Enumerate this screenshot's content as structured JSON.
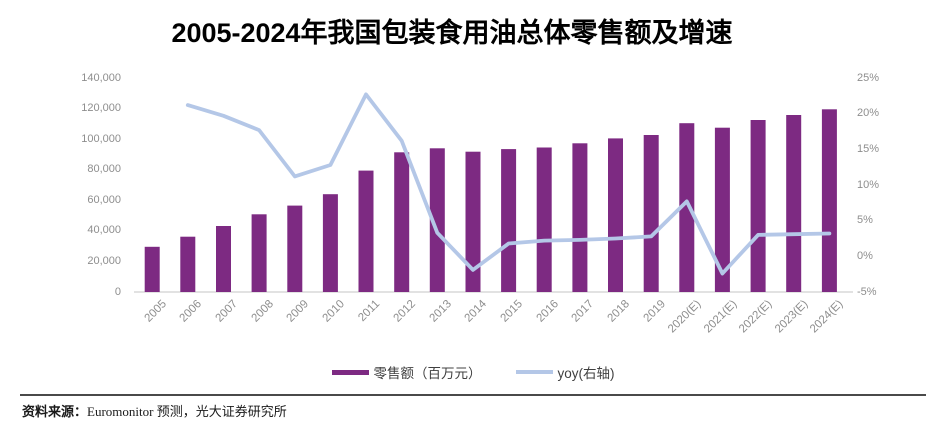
{
  "title": "2005-2024年我国包装食用油总体零售额及增速",
  "legend": {
    "bar_label": "零售额（百万元）",
    "line_label": "yoy(右轴)"
  },
  "footer": {
    "label": "资料来源：",
    "text": "Euromonitor 预测，光大证券研究所"
  },
  "colors": {
    "bar": "#7d2a82",
    "line": "#b4c7e7",
    "axis_text": "#8e8e8e",
    "baseline": "#d9d9d9",
    "title": "#000000"
  },
  "chart_data": {
    "type": "bar",
    "subtype": "bar+line combo, dual axis",
    "title": "2005-2024年我国包装食用油总体零售额及增速",
    "categories": [
      "2005",
      "2006",
      "2007",
      "2008",
      "2009",
      "2010",
      "2011",
      "2012",
      "2013",
      "2014",
      "2015",
      "2016",
      "2017",
      "2018",
      "2019",
      "2020(E)",
      "2021(E)",
      "2022(E)",
      "2023(E)",
      "2024(E)"
    ],
    "series": [
      {
        "name": "零售额（百万元）",
        "type": "bar",
        "axis": "left",
        "values": [
          29600,
          36200,
          43200,
          50800,
          56500,
          64000,
          79400,
          91400,
          94000,
          91800,
          93500,
          94500,
          97300,
          100500,
          102700,
          110400,
          107500,
          112500,
          115800,
          119500
        ]
      },
      {
        "name": "yoy(右轴)",
        "type": "line",
        "axis": "right",
        "values": [
          null,
          21.2,
          19.7,
          17.7,
          11.2,
          12.8,
          22.7,
          16.2,
          3.3,
          -1.9,
          1.8,
          2.2,
          2.3,
          2.5,
          2.8,
          7.7,
          -2.4,
          3.0,
          3.1,
          3.2
        ]
      }
    ],
    "left_axis": {
      "min": 0,
      "max": 140000,
      "step": 20000,
      "ticks": [
        0,
        20000,
        40000,
        60000,
        80000,
        100000,
        120000,
        140000
      ],
      "tick_labels": [
        "0",
        "20,000",
        "40,000",
        "60,000",
        "80,000",
        "100,000",
        "120,000",
        "140,000"
      ]
    },
    "right_axis": {
      "min": -5,
      "max": 25,
      "step": 5,
      "ticks": [
        -5,
        0,
        5,
        10,
        15,
        20,
        25
      ],
      "tick_labels": [
        "-5%",
        "0%",
        "5%",
        "10%",
        "15%",
        "20%",
        "25%"
      ]
    },
    "grid": false,
    "legend_position": "bottom"
  }
}
